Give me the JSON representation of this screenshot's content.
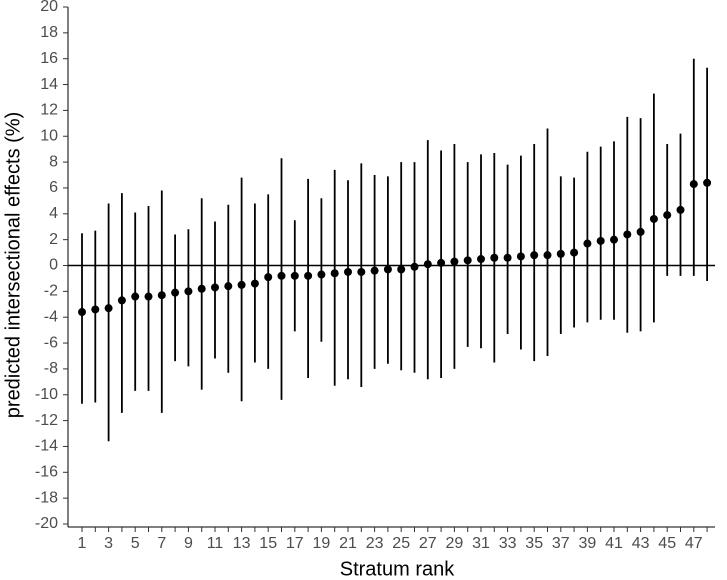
{
  "chart_data": {
    "type": "errorbar",
    "xlabel": "Stratum rank",
    "ylabel": "predicted intersectional effects (%)",
    "categories": [
      "1",
      null,
      "3",
      null,
      "5",
      null,
      "7",
      null,
      "9",
      null,
      "11",
      null,
      "13",
      null,
      "15",
      null,
      "17",
      null,
      "19",
      null,
      "21",
      null,
      "23",
      null,
      "25",
      null,
      "27",
      null,
      "29",
      null,
      "31",
      null,
      "33",
      null,
      "35",
      null,
      "37",
      null,
      "39",
      null,
      "41",
      null,
      "43",
      null,
      "45",
      null,
      "47",
      null
    ],
    "values": [
      -3.6,
      -3.4,
      -3.3,
      -2.7,
      -2.4,
      -2.4,
      -2.3,
      -2.1,
      -2.0,
      -1.8,
      -1.7,
      -1.6,
      -1.5,
      -1.4,
      -0.9,
      -0.8,
      -0.8,
      -0.8,
      -0.7,
      -0.6,
      -0.5,
      -0.5,
      -0.4,
      -0.3,
      -0.3,
      -0.1,
      0.1,
      0.2,
      0.3,
      0.4,
      0.5,
      0.6,
      0.6,
      0.7,
      0.8,
      0.8,
      0.9,
      1.0,
      1.7,
      1.9,
      2.0,
      2.4,
      2.6,
      3.6,
      3.9,
      4.3,
      6.3,
      6.4
    ],
    "lower": [
      -10.7,
      -10.6,
      -13.6,
      -11.4,
      -9.7,
      -9.7,
      -11.4,
      -7.4,
      -7.8,
      -9.6,
      -7.2,
      -8.3,
      -10.5,
      -7.5,
      -8.0,
      -10.4,
      -5.1,
      -8.7,
      -5.9,
      -9.3,
      -8.8,
      -9.4,
      -8.0,
      -7.6,
      -8.1,
      -8.3,
      -8.8,
      -8.7,
      -8.0,
      -6.3,
      -6.4,
      -7.5,
      -5.3,
      -6.5,
      -7.4,
      -7.0,
      -5.3,
      -4.8,
      -4.4,
      -4.2,
      -4.2,
      -5.2,
      -5.1,
      -4.4,
      -0.8,
      -0.8,
      -0.8,
      -1.2
    ],
    "upper": [
      2.5,
      2.7,
      4.8,
      5.6,
      4.1,
      4.6,
      5.8,
      2.4,
      2.8,
      5.2,
      3.4,
      4.7,
      6.8,
      4.8,
      5.5,
      8.3,
      3.5,
      6.7,
      5.2,
      7.4,
      6.6,
      7.9,
      7.0,
      6.9,
      8.0,
      8.0,
      9.7,
      8.9,
      9.4,
      8.0,
      8.6,
      8.7,
      7.8,
      8.5,
      9.4,
      10.6,
      6.9,
      6.8,
      8.8,
      9.2,
      9.6,
      11.5,
      11.4,
      13.3,
      9.4,
      10.2,
      16.0,
      15.3
    ],
    "color": "#000000",
    "reference_line": 0,
    "ylim": [
      -20,
      20
    ],
    "yticks": [
      -20,
      -18,
      -16,
      -14,
      -12,
      -10,
      -8,
      -6,
      -4,
      -2,
      0,
      2,
      4,
      6,
      8,
      10,
      12,
      14,
      16,
      18,
      20
    ],
    "grid": false
  }
}
